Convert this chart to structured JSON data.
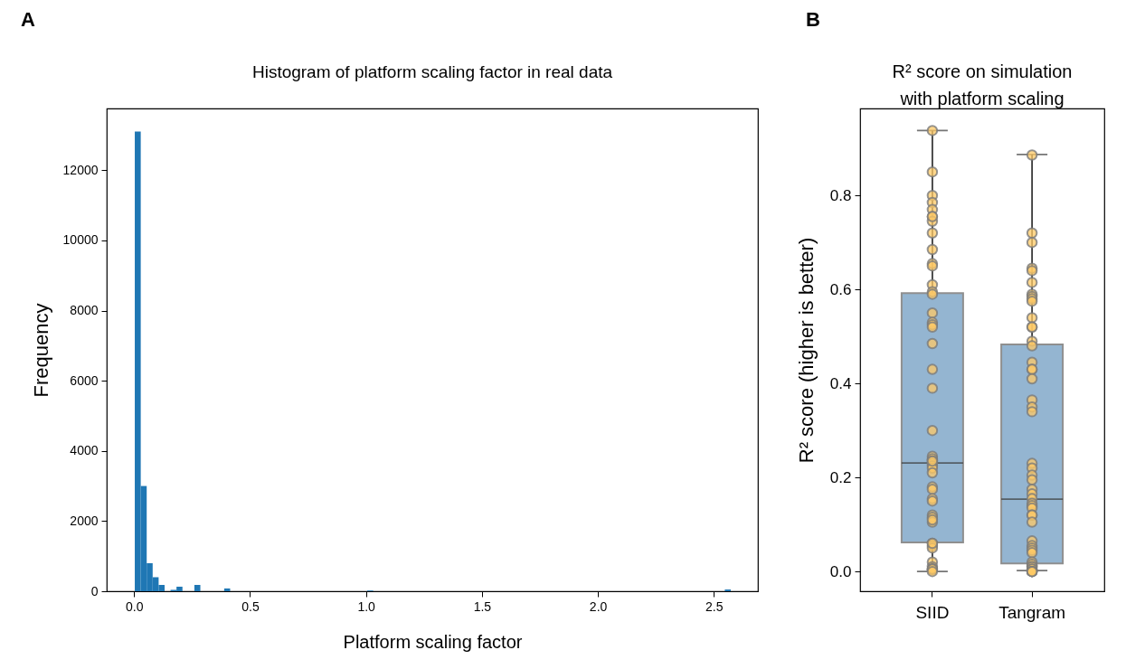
{
  "chart_data": [
    {
      "type": "histogram",
      "title": "Histogram of platform scaling factor in real data",
      "xlabel": "Platform scaling factor",
      "ylabel": "Frequency",
      "annotations": [
        "A"
      ],
      "color": "#1f77b4",
      "bins": [
        0.003,
        0.0287,
        0.0544,
        0.0801,
        0.1058,
        0.1315,
        0.1572,
        0.1829,
        0.2086,
        0.26,
        0.2857,
        0.3885,
        0.4142,
        1.0053,
        1.031,
        2.5473,
        2.573
      ],
      "values": [
        13100,
        3000,
        800,
        400,
        180,
        0,
        40,
        130,
        0,
        180,
        0,
        80,
        0,
        20,
        0,
        50
      ],
      "xlim": [
        -0.118,
        2.69
      ],
      "ylim": [
        0,
        13760
      ],
      "xticks": [
        {
          "value": 0,
          "label": "0.0"
        },
        0.5,
        {
          "value": 1,
          "label": "1.0"
        },
        1.5,
        {
          "value": 2,
          "label": "2.0"
        },
        2.5
      ],
      "yticks": [
        0,
        2000,
        4000,
        6000,
        8000,
        10000,
        12000
      ]
    },
    {
      "type": "box",
      "title": "R² score on simulation\nwith platform scaling",
      "ylabel": "R² score (higher is better)",
      "annotations": [
        "B"
      ],
      "categories": [
        "SIID",
        "Tangram"
      ],
      "ylim": [
        -0.042,
        0.985
      ],
      "yticks": [
        {
          "value": 0,
          "label": "0.0"
        },
        0.2,
        0.4,
        0.6,
        0.8
      ],
      "series": [
        {
          "type": "box",
          "color": "#94b5d1",
          "boxes": [
            {
              "low": 0.0,
              "q1": 0.062,
              "median": 0.231,
              "q3": 0.592,
              "high": 0.938
            },
            {
              "low": 0.002,
              "q1": 0.017,
              "median": 0.154,
              "q3": 0.483,
              "high": 0.887
            }
          ]
        },
        {
          "type": "scatter",
          "color": "#ffc966",
          "x": [
            "SIID",
            "SIID",
            "SIID",
            "SIID",
            "SIID",
            "SIID",
            "SIID",
            "SIID",
            "SIID",
            "SIID",
            "SIID",
            "SIID",
            "SIID",
            "SIID",
            "SIID",
            "SIID",
            "SIID",
            "SIID",
            "SIID",
            "SIID",
            "SIID",
            "SIID",
            "SIID",
            "SIID",
            "SIID",
            "SIID",
            "SIID",
            "SIID",
            "SIID",
            "SIID",
            "SIID",
            "SIID",
            "SIID",
            "SIID",
            "SIID",
            "SIID",
            "SIID",
            "SIID",
            "SIID",
            "SIID",
            "SIID",
            "SIID",
            "SIID",
            "SIID",
            "SIID",
            "SIID",
            "SIID",
            "SIID",
            "SIID",
            "SIID",
            "Tangram",
            "Tangram",
            "Tangram",
            "Tangram",
            "Tangram",
            "Tangram",
            "Tangram",
            "Tangram",
            "Tangram",
            "Tangram",
            "Tangram",
            "Tangram",
            "Tangram",
            "Tangram",
            "Tangram",
            "Tangram",
            "Tangram",
            "Tangram",
            "Tangram",
            "Tangram",
            "Tangram",
            "Tangram",
            "Tangram",
            "Tangram",
            "Tangram",
            "Tangram",
            "Tangram",
            "Tangram",
            "Tangram",
            "Tangram",
            "Tangram",
            "Tangram",
            "Tangram",
            "Tangram",
            "Tangram",
            "Tangram",
            "Tangram",
            "Tangram",
            "Tangram",
            "Tangram",
            "Tangram",
            "Tangram",
            "Tangram",
            "Tangram",
            "Tangram",
            "Tangram",
            "Tangram",
            "Tangram",
            "Tangram",
            "Tangram"
          ],
          "values": [
            0.938,
            0.85,
            0.8,
            0.785,
            0.77,
            0.755,
            0.745,
            0.755,
            0.72,
            0.685,
            0.655,
            0.65,
            0.61,
            0.595,
            0.59,
            0.55,
            0.53,
            0.525,
            0.52,
            0.485,
            0.43,
            0.39,
            0.3,
            0.245,
            0.24,
            0.235,
            0.23,
            0.225,
            0.22,
            0.235,
            0.21,
            0.18,
            0.175,
            0.155,
            0.15,
            0.12,
            0.115,
            0.105,
            0.11,
            0.06,
            0.055,
            0.05,
            0.06,
            0.02,
            0.01,
            0.005,
            0.005,
            0.005,
            0.005,
            0.0,
            0.886,
            0.72,
            0.7,
            0.645,
            0.64,
            0.615,
            0.59,
            0.585,
            0.58,
            0.575,
            0.54,
            0.52,
            0.52,
            0.49,
            0.48,
            0.445,
            0.43,
            0.43,
            0.41,
            0.365,
            0.35,
            0.34,
            0.23,
            0.22,
            0.205,
            0.195,
            0.175,
            0.165,
            0.155,
            0.145,
            0.14,
            0.135,
            0.12,
            0.12,
            0.105,
            0.065,
            0.055,
            0.05,
            0.045,
            0.04,
            0.02,
            0.015,
            0.01,
            0.01,
            0.005,
            0.005,
            0.0,
            0.0,
            0.0,
            0.0
          ]
        }
      ]
    }
  ]
}
